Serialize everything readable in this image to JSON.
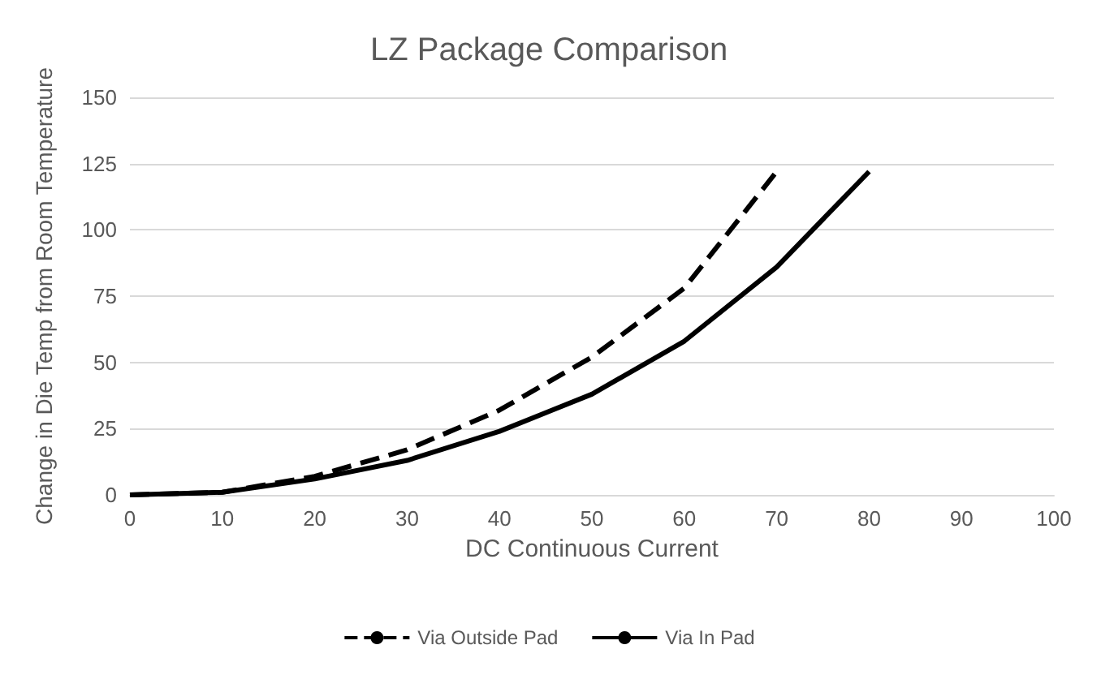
{
  "chart_data": {
    "type": "line",
    "title": "LZ Package Comparison",
    "xlabel": "DC Continuous Current",
    "ylabel": "Change in Die Temp from Room Temperature",
    "xlim": [
      0,
      100
    ],
    "xticks": [
      0,
      10,
      20,
      30,
      40,
      50,
      60,
      70,
      80,
      90,
      100
    ],
    "ylim": [
      0,
      150
    ],
    "yticks": [
      0,
      25,
      50,
      75,
      100,
      125,
      150
    ],
    "grid": "y",
    "legend": "bottom",
    "marker": "none",
    "series": [
      {
        "name": "Via Outside Pad",
        "color": "#000000",
        "line_style": "dashed",
        "x": [
          0,
          10,
          20,
          30,
          40,
          50,
          60,
          70
        ],
        "values": [
          0,
          1,
          7,
          17,
          32,
          52,
          78,
          122
        ]
      },
      {
        "name": "Via In Pad",
        "color": "#000000",
        "line_style": "solid",
        "x": [
          0,
          10,
          20,
          30,
          40,
          50,
          60,
          70,
          80
        ],
        "values": [
          0,
          1,
          6,
          13,
          24,
          38,
          58,
          86,
          122
        ]
      }
    ]
  }
}
